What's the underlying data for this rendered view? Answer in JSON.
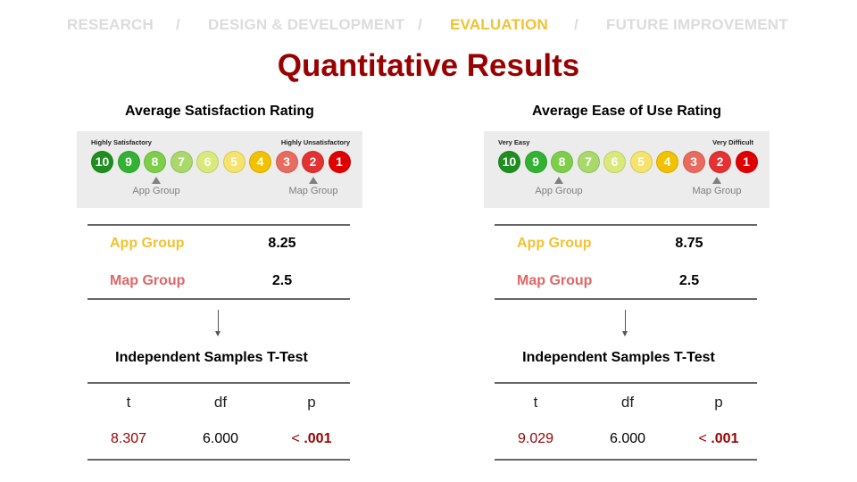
{
  "nav": {
    "items": [
      "RESEARCH",
      "DESIGN & DEVELOPMENT",
      "EVALUATION",
      "FUTURE IMPROVEMENT"
    ],
    "separator": "/",
    "active": "EVALUATION"
  },
  "title": "Quantitative Results",
  "colors": {
    "title": "#990000",
    "app_group": "#f1c232",
    "map_group": "#e06666",
    "scale": [
      "#1e8f1e",
      "#32b232",
      "#7dcf4a",
      "#a8d96a",
      "#d9ea7a",
      "#f5e36b",
      "#f2c200",
      "#e96a5e",
      "#e43131",
      "#e00000"
    ]
  },
  "panels": [
    {
      "rating_title": "Average Satisfaction Rating",
      "scale_high_label": "Highly Satisfactory",
      "scale_low_label": "Highly Unsatisfactory",
      "scale_numbers": [
        "10",
        "9",
        "8",
        "7",
        "6",
        "5",
        "4",
        "3",
        "2",
        "1"
      ],
      "pointer_app_label": "App Group",
      "pointer_map_label": "Map Group",
      "results": [
        {
          "label": "App Group",
          "value": "8.25"
        },
        {
          "label": "Map Group",
          "value": "2.5"
        }
      ],
      "ttest_title": "Independent Samples T-Test",
      "ttest_headers": [
        "t",
        "df",
        "p"
      ],
      "ttest_values": {
        "t": "8.307",
        "df": "6.000",
        "p_prefix": "< ",
        "p": ".001"
      }
    },
    {
      "rating_title": "Average Ease of Use Rating",
      "scale_high_label": "Very Easy",
      "scale_low_label": "Very Difficult",
      "scale_numbers": [
        "10",
        "9",
        "8",
        "7",
        "6",
        "5",
        "4",
        "3",
        "2",
        "1"
      ],
      "pointer_app_label": "App Group",
      "pointer_map_label": "Map Group",
      "results": [
        {
          "label": "App Group",
          "value": "8.75"
        },
        {
          "label": "Map Group",
          "value": "2.5"
        }
      ],
      "ttest_title": "Independent Samples T-Test",
      "ttest_headers": [
        "t",
        "df",
        "p"
      ],
      "ttest_values": {
        "t": "9.029",
        "df": "6.000",
        "p_prefix": "< ",
        "p": ".001"
      }
    }
  ]
}
